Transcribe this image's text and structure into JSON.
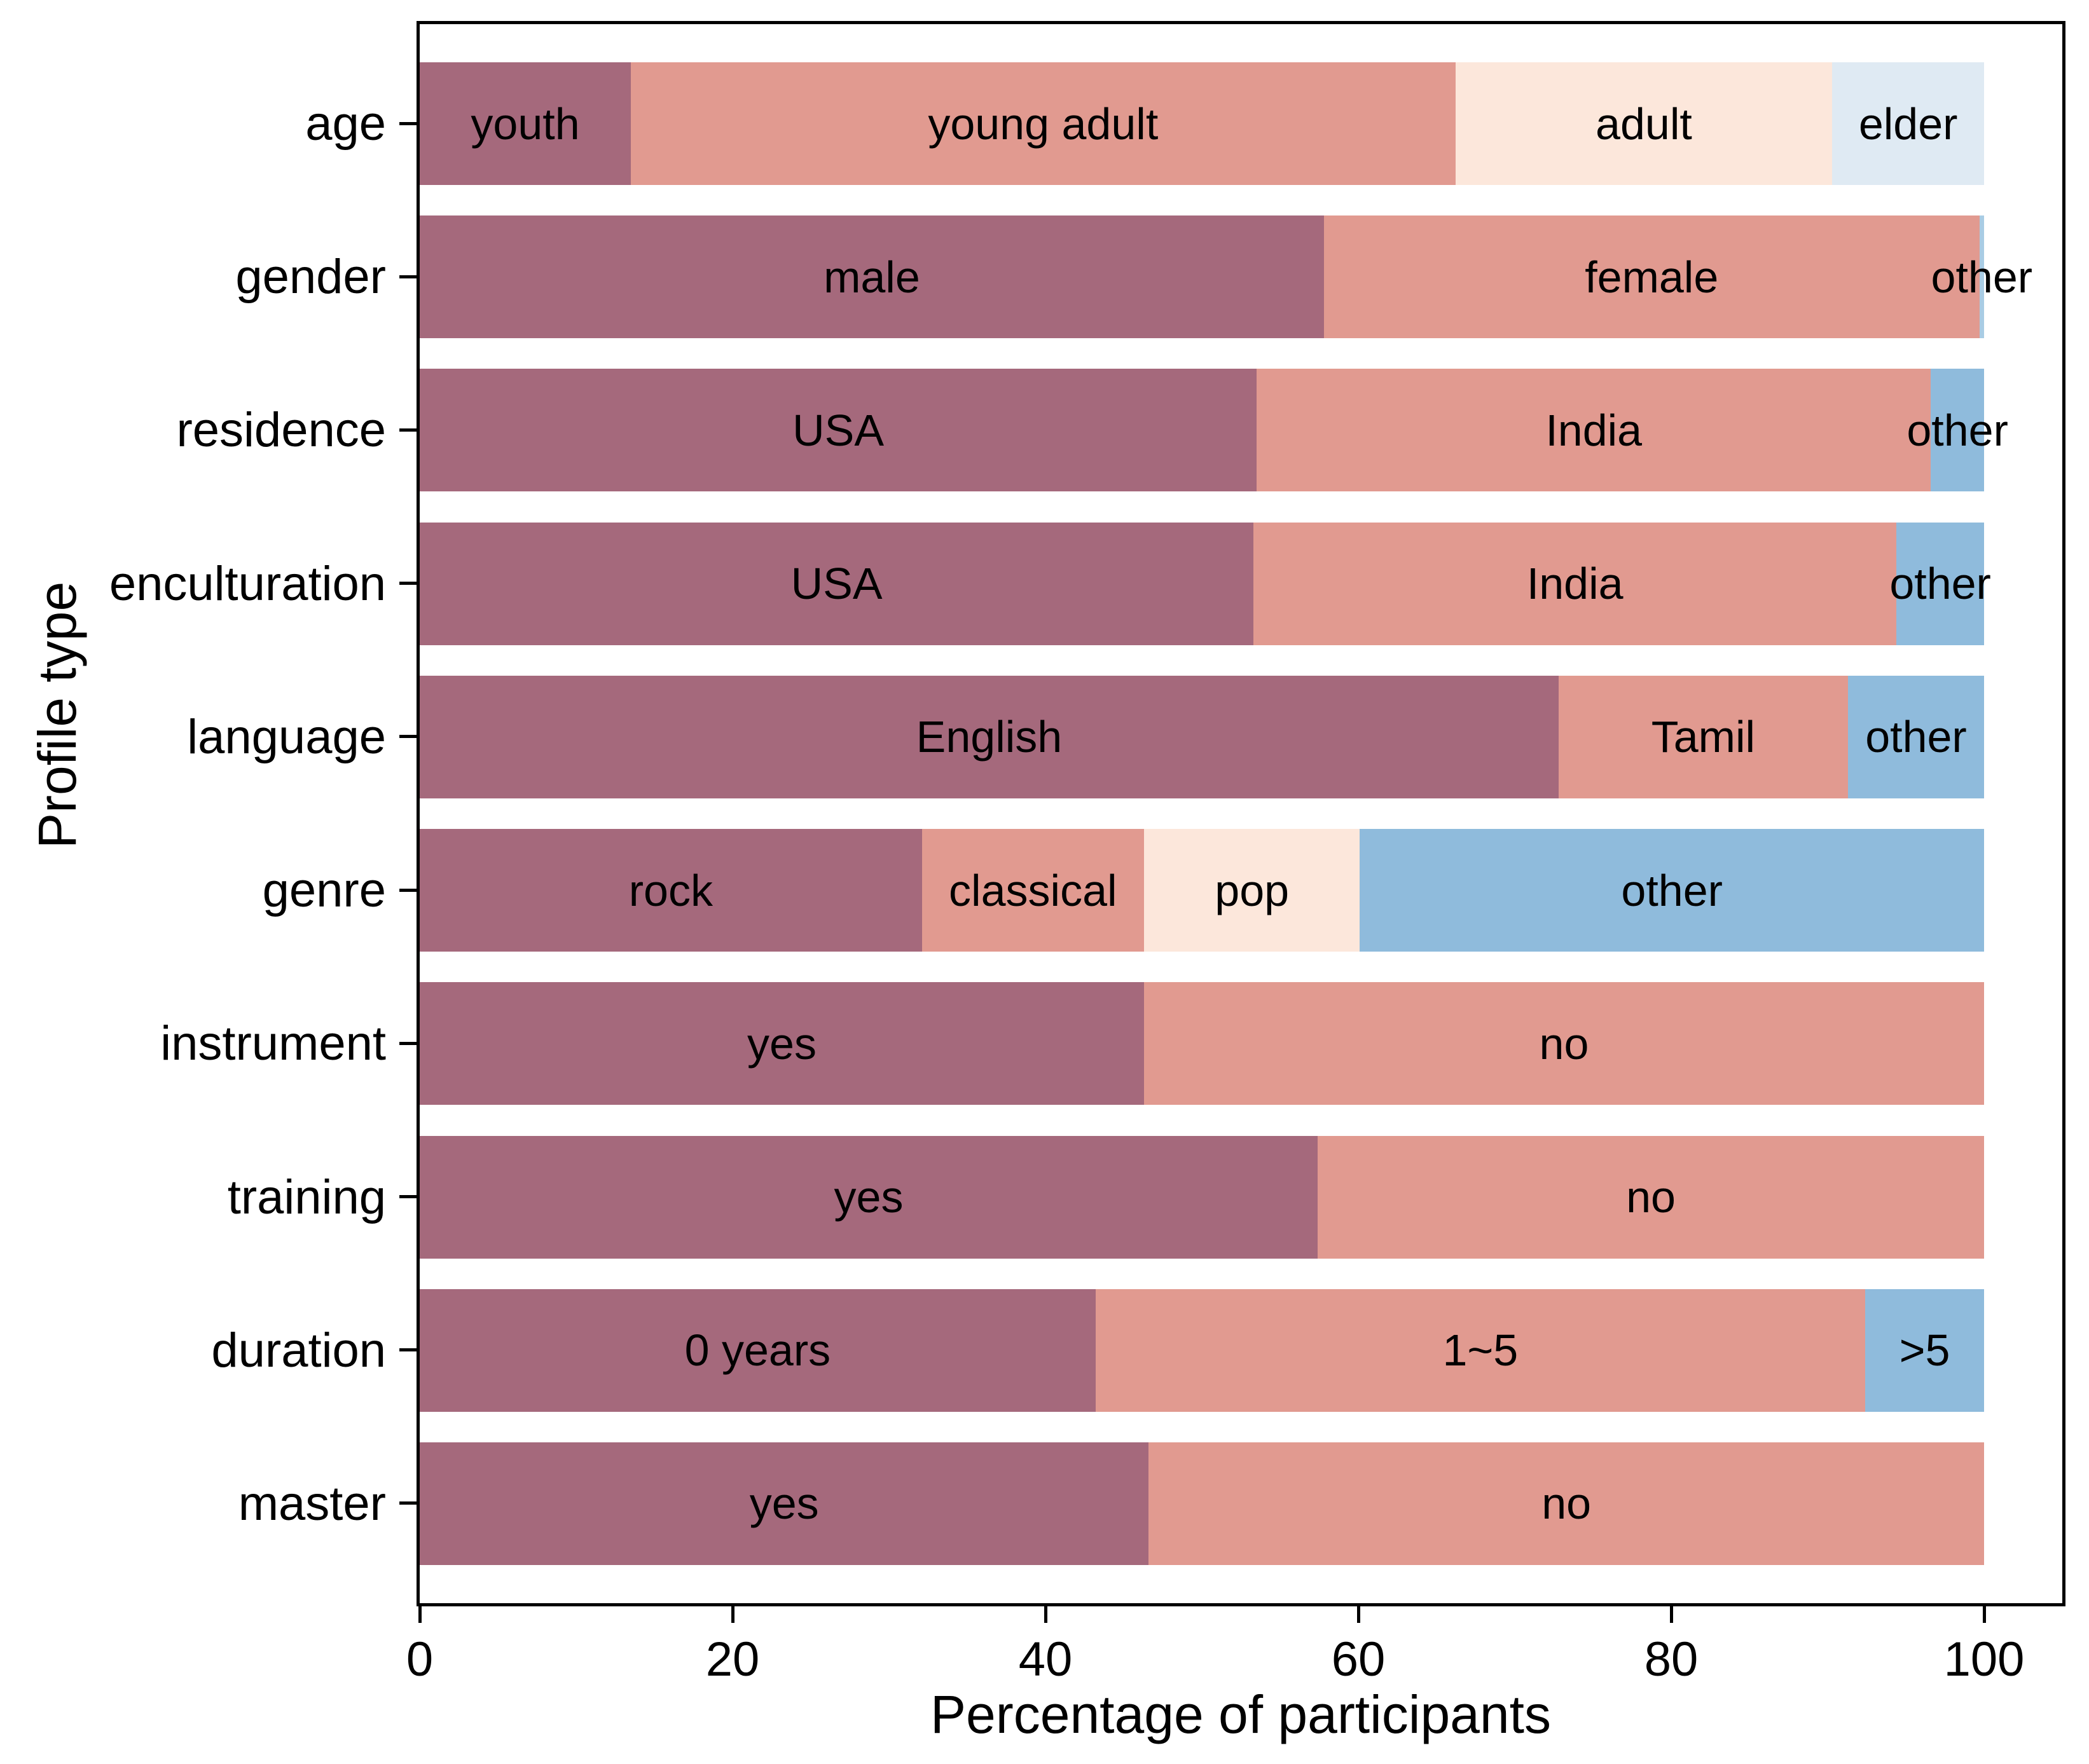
{
  "chart_data": {
    "type": "bar",
    "orientation": "horizontal",
    "stacked": true,
    "title": "",
    "xlabel": "Percentage of participants",
    "ylabel": "Profile type",
    "xlim": [
      0,
      105
    ],
    "x_ticks": [
      0,
      20,
      40,
      60,
      80,
      100
    ],
    "grid": false,
    "legend": "none (labels drawn inside segments)",
    "palette": {
      "mauve": "#a5697c",
      "salmon": "#e19a90",
      "peach": "#fce7db",
      "pale_blue": "#dfeaf3",
      "blue": "#8fbbdc",
      "light_blue": "#a9cce4"
    },
    "rows": [
      {
        "category": "age",
        "segments": [
          {
            "label": "youth",
            "value": 13.5,
            "color": "mauve"
          },
          {
            "label": "young adult",
            "value": 52.7,
            "color": "salmon"
          },
          {
            "label": "adult",
            "value": 24.1,
            "color": "peach"
          },
          {
            "label": "elder",
            "value": 9.7,
            "color": "pale_blue"
          }
        ]
      },
      {
        "category": "gender",
        "segments": [
          {
            "label": "male",
            "value": 57.8,
            "color": "mauve"
          },
          {
            "label": "female",
            "value": 41.9,
            "color": "salmon"
          },
          {
            "label": "other",
            "value": 0.3,
            "color": "light_blue"
          }
        ]
      },
      {
        "category": "residence",
        "segments": [
          {
            "label": "USA",
            "value": 53.5,
            "color": "mauve"
          },
          {
            "label": "India",
            "value": 43.1,
            "color": "salmon"
          },
          {
            "label": "other",
            "value": 3.4,
            "color": "blue"
          }
        ]
      },
      {
        "category": "enculturation",
        "segments": [
          {
            "label": "USA",
            "value": 53.3,
            "color": "mauve"
          },
          {
            "label": "India",
            "value": 41.1,
            "color": "salmon"
          },
          {
            "label": "other",
            "value": 5.6,
            "color": "blue"
          }
        ]
      },
      {
        "category": "language",
        "segments": [
          {
            "label": "English",
            "value": 72.8,
            "color": "mauve"
          },
          {
            "label": "Tamil",
            "value": 18.5,
            "color": "salmon"
          },
          {
            "label": "other",
            "value": 8.7,
            "color": "blue"
          }
        ]
      },
      {
        "category": "genre",
        "segments": [
          {
            "label": "rock",
            "value": 32.1,
            "color": "mauve"
          },
          {
            "label": "classical",
            "value": 14.2,
            "color": "salmon"
          },
          {
            "label": "pop",
            "value": 13.8,
            "color": "peach"
          },
          {
            "label": "other",
            "value": 39.9,
            "color": "blue"
          }
        ]
      },
      {
        "category": "instrument",
        "segments": [
          {
            "label": "yes",
            "value": 46.3,
            "color": "mauve"
          },
          {
            "label": "no",
            "value": 53.7,
            "color": "salmon"
          }
        ]
      },
      {
        "category": "training",
        "segments": [
          {
            "label": "yes",
            "value": 57.4,
            "color": "mauve"
          },
          {
            "label": "no",
            "value": 42.6,
            "color": "salmon"
          }
        ]
      },
      {
        "category": "duration",
        "segments": [
          {
            "label": "0 years",
            "value": 43.2,
            "color": "mauve"
          },
          {
            "label": "1~5",
            "value": 49.2,
            "color": "salmon"
          },
          {
            "label": ">5",
            "value": 7.6,
            "color": "blue"
          }
        ]
      },
      {
        "category": "master",
        "segments": [
          {
            "label": "yes",
            "value": 46.6,
            "color": "mauve"
          },
          {
            "label": "no",
            "value": 53.4,
            "color": "salmon"
          }
        ]
      }
    ]
  }
}
